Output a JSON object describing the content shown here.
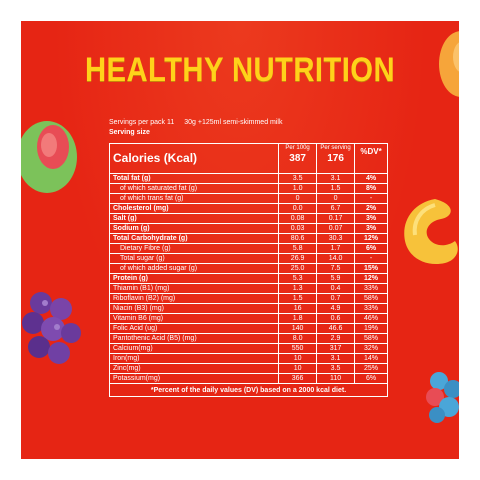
{
  "title": "HEALTHY NUTRITION",
  "servings": {
    "label": "Servings  per pack 11",
    "detail": "30g  +125ml semi-skimmed milk",
    "size_label": "Serving size"
  },
  "table": {
    "header": {
      "calories_label": "Calories (Kcal)",
      "per100g_label": "Per 100g",
      "per_serving_label": "Per serving",
      "dv_label": "%DV*",
      "calories_100g": "387",
      "calories_serving": "176"
    },
    "rows": [
      {
        "name": "Total fat (g)",
        "per100": "3.5",
        "serving": "3.1",
        "dv": "4%",
        "style": "main"
      },
      {
        "name": "of which saturated fat (g)",
        "per100": "1.0",
        "serving": "1.5",
        "dv": "8%",
        "style": "sub"
      },
      {
        "name": "of which trans fat (g)",
        "per100": "0",
        "serving": "0",
        "dv": "-",
        "style": "sub"
      },
      {
        "name": "Cholesterol (mg)",
        "per100": "0.0",
        "serving": "6.7",
        "dv": "2%",
        "style": "main"
      },
      {
        "name": "Salt (g)",
        "per100": "0.08",
        "serving": "0.17",
        "dv": "3%",
        "style": "main"
      },
      {
        "name": "Sodium (g)",
        "per100": "0.03",
        "serving": "0.07",
        "dv": "3%",
        "style": "main"
      },
      {
        "name": "Total Carbohydrate (g)",
        "per100": "80.6",
        "serving": "30.3",
        "dv": "12%",
        "style": "main"
      },
      {
        "name": "Dietary Fibre (g)",
        "per100": "5.8",
        "serving": "1.7",
        "dv": "6%",
        "style": "sub"
      },
      {
        "name": "Total sugar (g)",
        "per100": "26.9",
        "serving": "14.0",
        "dv": "-",
        "style": "sub"
      },
      {
        "name": "of which added sugar (g)",
        "per100": "25.0",
        "serving": "7.5",
        "dv": "15%",
        "style": "sub"
      },
      {
        "name": "Protein (g)",
        "per100": "5.3",
        "serving": "5.9",
        "dv": "12%",
        "style": "main"
      },
      {
        "name": "Thiamin (B1) (mg)",
        "per100": "1.3",
        "serving": "0.4",
        "dv": "33%",
        "style": "plain"
      },
      {
        "name": "Riboflavin (B2) (mg)",
        "per100": "1.5",
        "serving": "0.7",
        "dv": "58%",
        "style": "plain"
      },
      {
        "name": "Niacin (B3) (mg)",
        "per100": "16",
        "serving": "4.9",
        "dv": "33%",
        "style": "plain"
      },
      {
        "name": "Vitamin B6 (mg)",
        "per100": "1.8",
        "serving": "0.6",
        "dv": "46%",
        "style": "plain"
      },
      {
        "name": "Folic Acid (ug)",
        "per100": "140",
        "serving": "46.6",
        "dv": "19%",
        "style": "plain"
      },
      {
        "name": "Pantothenic Acid (B5) (mg)",
        "per100": "8.0",
        "serving": "2.9",
        "dv": "58%",
        "style": "plain"
      },
      {
        "name": "Calcium(mg)",
        "per100": "550",
        "serving": "317",
        "dv": "32%",
        "style": "plain"
      },
      {
        "name": "Iron(mg)",
        "per100": "10",
        "serving": "3.1",
        "dv": "14%",
        "style": "plain"
      },
      {
        "name": "Zinc(mg)",
        "per100": "10",
        "serving": "3.5",
        "dv": "25%",
        "style": "plain"
      },
      {
        "name": "Potassium(mg)",
        "per100": "366",
        "serving": "110",
        "dv": "6%",
        "style": "plain"
      }
    ],
    "footnote": "*Percent of the daily values (DV) based on a 2000 kcal diet."
  },
  "colors": {
    "background": "#e62514",
    "title": "#ffd21a",
    "text": "#ffffff"
  }
}
